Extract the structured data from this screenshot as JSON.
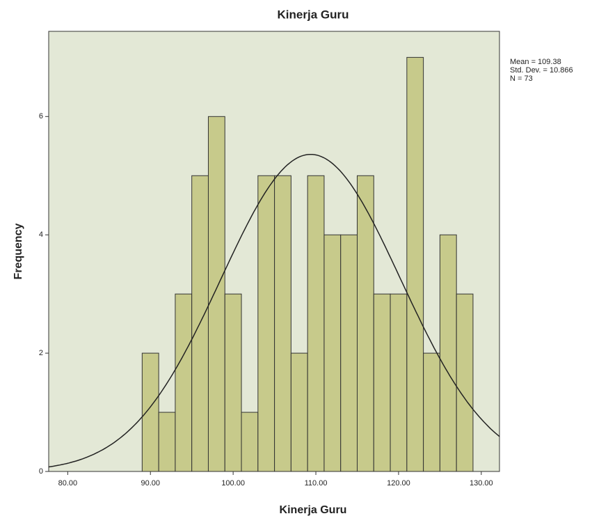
{
  "chart_data": {
    "type": "histogram",
    "title": "Kinerja Guru",
    "x_label": "Kinerja Guru",
    "y_label": "Frequency",
    "bins": [
      89,
      91,
      93,
      95,
      97,
      99,
      101,
      103,
      105,
      107,
      109,
      111,
      113,
      115,
      117,
      119,
      121,
      123,
      125,
      127,
      129
    ],
    "values": [
      2,
      1,
      3,
      5,
      6,
      3,
      1,
      5,
      5,
      2,
      5,
      4,
      4,
      5,
      3,
      3,
      7,
      2,
      4,
      3
    ],
    "color": "#c2c47e",
    "xlim": [
      77.7,
      132.2
    ],
    "ylim": [
      0,
      7.44
    ],
    "xticks": [
      {
        "value": 80,
        "label": "80.00"
      },
      {
        "value": 90,
        "label": "90.00"
      },
      {
        "value": 100,
        "label": "100.00"
      },
      {
        "value": 110,
        "label": "110.00"
      },
      {
        "value": 120,
        "label": "120.00"
      },
      {
        "value": 130,
        "label": "130.00"
      }
    ],
    "yticks": [
      0,
      2,
      4,
      6
    ],
    "stats": [
      {
        "value": 109.38,
        "label": "Mean = 109.38"
      },
      {
        "value": 10.866,
        "label": "Std. Dev. = 10.866"
      },
      {
        "value": 73,
        "label": "N = 73"
      }
    ]
  }
}
